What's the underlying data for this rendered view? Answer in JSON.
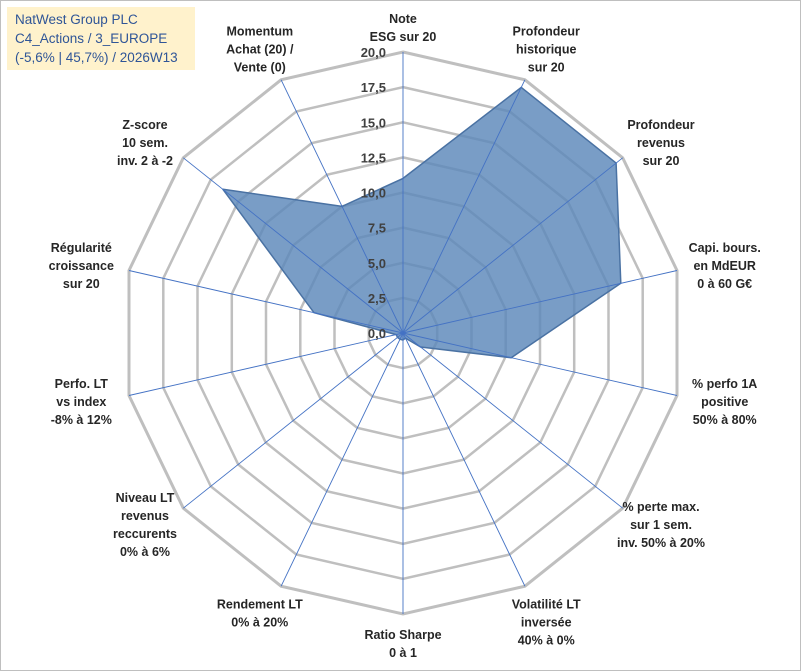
{
  "title_box": {
    "line1": "NatWest Group PLC",
    "line2": "C4_Actions / 3_EUROPE",
    "line3": "(-5,6% | 45,7%) / 2026W13"
  },
  "colors": {
    "fill": "#5b87b9",
    "fill_stroke": "#4a72a3",
    "spoke": "#4472c4",
    "grid": "#bfbfbf"
  },
  "chart_data": {
    "type": "radar",
    "title": "",
    "rmin": 0,
    "rmax": 20,
    "ticks": [
      "0,0",
      "2,5",
      "5,0",
      "7,5",
      "10,0",
      "12,5",
      "15,0",
      "17,5",
      "20,0"
    ],
    "tick_values": [
      0,
      2.5,
      5,
      7.5,
      10,
      12.5,
      15,
      17.5,
      20
    ],
    "categories": [
      [
        "Note",
        "ESG sur 20"
      ],
      [
        "Profondeur",
        "historique",
        "sur 20"
      ],
      [
        "Profondeur",
        "revenus",
        "sur 20"
      ],
      [
        "Capi. bours.",
        "en MdEUR",
        "0 à 60 G€"
      ],
      [
        "% perfo 1A",
        "positive",
        "50% à 80%"
      ],
      [
        "% perte max.",
        "sur 1 sem.",
        "inv. 50% à 20%"
      ],
      [
        "Volatilité LT",
        "inversée",
        "40% à 0%"
      ],
      [
        "Ratio Sharpe",
        "0 à 1"
      ],
      [
        "Rendement LT",
        "0% à 20%"
      ],
      [
        "Niveau LT",
        "revenus",
        "reccurents",
        "0% à 6%"
      ],
      [
        "Perfo. LT",
        "vs index",
        "-8% à 12%"
      ],
      [
        "Régularité",
        "croissance",
        "sur 20"
      ],
      [
        "Z-score",
        "10 sem.",
        "inv. 2 à -2"
      ],
      [
        "Momentum",
        "Achat (20) /",
        "Vente (0)"
      ]
    ],
    "series": [
      {
        "name": "NatWest Group PLC",
        "values": [
          11.0,
          19.4,
          19.4,
          15.9,
          7.9,
          1.6,
          0.4,
          0.5,
          0.5,
          0.5,
          0.5,
          6.5,
          16.4,
          10.0
        ]
      }
    ]
  }
}
